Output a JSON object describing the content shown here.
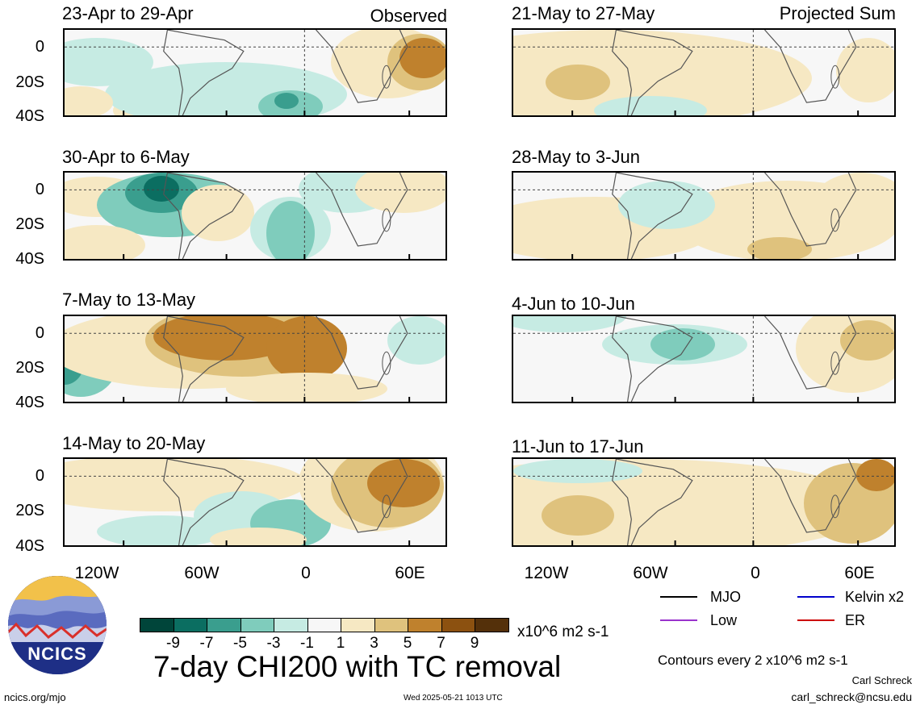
{
  "left_column": {
    "tag": "Observed",
    "panels": [
      {
        "title": "23-Apr to 29-Apr"
      },
      {
        "title": "30-Apr to 6-May"
      },
      {
        "title": "7-May to 13-May"
      },
      {
        "title": "14-May to 20-May"
      }
    ]
  },
  "right_column": {
    "tag": "Projected Sum",
    "panels": [
      {
        "title": "21-May to 27-May"
      },
      {
        "title": "28-May to 3-Jun"
      },
      {
        "title": "4-Jun to 10-Jun"
      },
      {
        "title": "11-Jun to 17-Jun"
      }
    ]
  },
  "chart_data": {
    "type": "heatmap",
    "title": "7-day CHI200 with TC removal",
    "units": "x10^6 m2 s-1",
    "y_ticks": [
      "0",
      "20S",
      "40S"
    ],
    "x_ticks": [
      "120W",
      "60W",
      "0",
      "60E"
    ],
    "colorbar": {
      "labels": [
        "-9",
        "-7",
        "-5",
        "-3",
        "-1",
        "1",
        "3",
        "5",
        "7",
        "9"
      ],
      "colors": [
        "#00453a",
        "#0b6e61",
        "#3a9e8e",
        "#7fccbc",
        "#c6ebe3",
        "#f7f7f7",
        "#f6e8c3",
        "#dfc27d",
        "#bf812d",
        "#8c5110",
        "#54300a"
      ]
    }
  },
  "legend": {
    "items": [
      {
        "label": "MJO",
        "color": "#000000"
      },
      {
        "label": "Kelvin x2",
        "color": "#0000cc"
      },
      {
        "label": "Low",
        "color": "#9933cc"
      },
      {
        "label": "ER",
        "color": "#cc0000"
      }
    ],
    "contour_note": "Contours every 2 x10^6 m2 s-1"
  },
  "footer": {
    "author": "Carl Schreck",
    "email": "carl_schreck@ncsu.edu",
    "website": "ncics.org/mjo",
    "timestamp": "Wed 2025-05-21 1013 UTC",
    "logo_text": "NCICS"
  }
}
